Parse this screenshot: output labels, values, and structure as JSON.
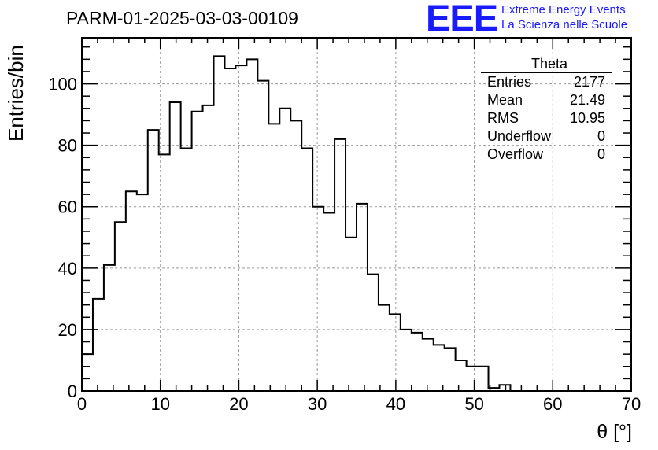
{
  "header": {
    "title": "PARM-01-2025-03-03-00109",
    "logo_letters": "EEE",
    "logo_line1": "Extreme Energy Events",
    "logo_line2": "La Scienza nelle Scuole"
  },
  "stats_box": {
    "title": "Theta",
    "rows": [
      {
        "label": "Entries",
        "value": "2177"
      },
      {
        "label": "Mean",
        "value": "21.49"
      },
      {
        "label": "RMS",
        "value": "10.95"
      },
      {
        "label": "Underflow",
        "value": "0"
      },
      {
        "label": "Overflow",
        "value": "0"
      }
    ]
  },
  "chart_data": {
    "type": "histogram",
    "title": "PARM-01-2025-03-03-00109",
    "xlabel": "θ [°]",
    "ylabel": "Entries/bin",
    "xlim": [
      0,
      70
    ],
    "ylim": [
      0,
      115
    ],
    "grid": true,
    "bin_width": 1.4,
    "x_ticks": [
      0,
      10,
      20,
      30,
      40,
      50,
      60,
      70
    ],
    "y_ticks": [
      0,
      20,
      40,
      60,
      80,
      100
    ],
    "values": [
      12,
      30,
      41,
      55,
      65,
      64,
      85,
      77,
      94,
      79,
      91,
      93,
      109,
      105,
      106,
      108,
      101,
      87,
      92,
      88,
      79,
      60,
      58,
      82,
      50,
      61,
      38,
      28,
      25,
      20,
      19,
      17,
      15,
      14,
      10,
      8,
      8,
      1,
      2,
      0,
      0,
      0,
      0,
      0,
      0,
      0,
      0,
      0,
      0,
      0
    ]
  }
}
